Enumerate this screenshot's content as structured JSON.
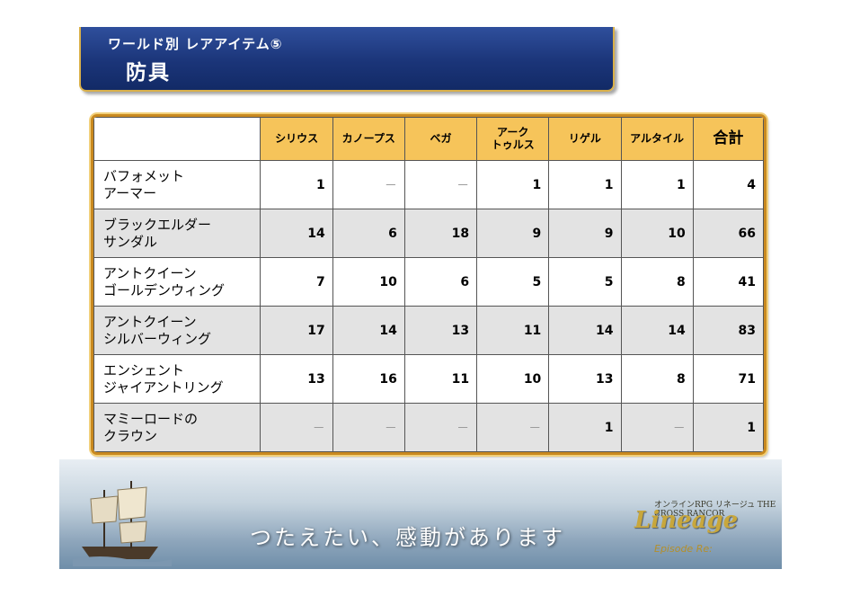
{
  "title": {
    "subtitle": "ワールド別 レアアイテム⑤",
    "main": "防具"
  },
  "table": {
    "headers": [
      "",
      "シリウス",
      "カノープス",
      "ベガ",
      "アーク\nトゥルス",
      "リゲル",
      "アルタイル",
      "合計"
    ],
    "rows": [
      {
        "name": "バフォメット\nアーマー",
        "values": [
          "1",
          "－",
          "－",
          "1",
          "1",
          "1",
          "4"
        ]
      },
      {
        "name": "ブラックエルダー\nサンダル",
        "values": [
          "14",
          "6",
          "18",
          "9",
          "9",
          "10",
          "66"
        ]
      },
      {
        "name": "アントクイーン\nゴールデンウィング",
        "values": [
          "7",
          "10",
          "6",
          "5",
          "5",
          "8",
          "41"
        ]
      },
      {
        "name": "アントクイーン\nシルバーウィング",
        "values": [
          "17",
          "14",
          "13",
          "11",
          "14",
          "14",
          "83"
        ]
      },
      {
        "name": "エンシェント\nジャイアントリング",
        "values": [
          "13",
          "16",
          "11",
          "10",
          "13",
          "8",
          "71"
        ]
      },
      {
        "name": "マミーロードの\nクラウン",
        "values": [
          "－",
          "－",
          "－",
          "－",
          "1",
          "－",
          "1"
        ]
      }
    ]
  },
  "footer": {
    "slogan": "つたえたい、感動があります",
    "logo_small": "オンラインRPG リネージュ THE CROSS RANCOR",
    "logo_main": "Lineage",
    "logo_episode": "Episode Re:"
  },
  "colors": {
    "title_bg": "#1b3579",
    "title_border": "#d9b04a",
    "header_bg": "#f6c45a",
    "frame": "#c9891f",
    "shade_row": "#e3e3e3"
  }
}
